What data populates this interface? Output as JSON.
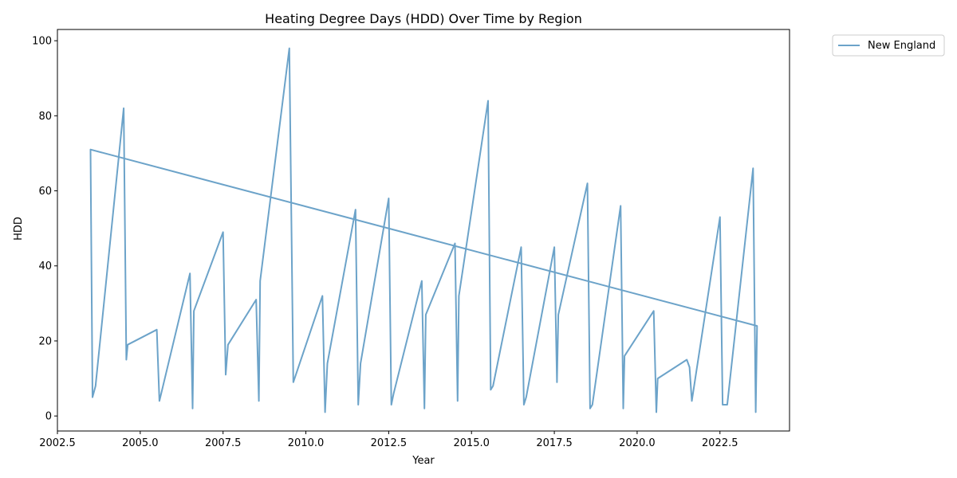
{
  "chart_data": {
    "type": "line",
    "title": "Heating Degree Days (HDD) Over Time by Region",
    "xlabel": "Year",
    "ylabel": "HDD",
    "xlim": [
      2002.5,
      2024.6
    ],
    "ylim": [
      -4,
      103
    ],
    "xticks": [
      2002.5,
      2005.0,
      2007.5,
      2010.0,
      2012.5,
      2015.0,
      2017.5,
      2020.0,
      2022.5
    ],
    "xtick_labels": [
      "2002.5",
      "2005.0",
      "2007.5",
      "2010.0",
      "2012.5",
      "2015.0",
      "2017.5",
      "2020.0",
      "2022.5"
    ],
    "yticks": [
      0,
      20,
      40,
      60,
      80,
      100
    ],
    "ytick_labels": [
      "0",
      "20",
      "40",
      "60",
      "80",
      "100"
    ],
    "grid": false,
    "legend_position": "outside-top-right",
    "series": [
      {
        "name": "New England",
        "color": "#6ca3c9",
        "points": [
          [
            2023.5,
            66
          ],
          [
            2023.58,
            1
          ],
          [
            2023.62,
            24
          ],
          [
            2003.5,
            71
          ],
          [
            2003.56,
            5
          ],
          [
            2003.65,
            8
          ],
          [
            2004.5,
            82
          ],
          [
            2004.58,
            15
          ],
          [
            2004.62,
            19
          ],
          [
            2005.5,
            23
          ],
          [
            2005.58,
            4
          ],
          [
            2006.5,
            38
          ],
          [
            2006.58,
            2
          ],
          [
            2006.62,
            28
          ],
          [
            2007.5,
            49
          ],
          [
            2007.58,
            11
          ],
          [
            2007.65,
            19
          ],
          [
            2008.5,
            31
          ],
          [
            2008.58,
            4
          ],
          [
            2008.62,
            36
          ],
          [
            2009.5,
            98
          ],
          [
            2009.62,
            9
          ],
          [
            2010.5,
            32
          ],
          [
            2010.58,
            1
          ],
          [
            2010.65,
            14
          ],
          [
            2011.5,
            55
          ],
          [
            2011.58,
            3
          ],
          [
            2011.65,
            14
          ],
          [
            2012.5,
            58
          ],
          [
            2012.58,
            3
          ],
          [
            2012.65,
            6
          ],
          [
            2013.5,
            36
          ],
          [
            2013.58,
            2
          ],
          [
            2013.62,
            27
          ],
          [
            2014.5,
            46
          ],
          [
            2014.58,
            4
          ],
          [
            2014.62,
            32
          ],
          [
            2015.5,
            84
          ],
          [
            2015.58,
            7
          ],
          [
            2015.65,
            8
          ],
          [
            2016.5,
            45
          ],
          [
            2016.58,
            3
          ],
          [
            2016.65,
            5
          ],
          [
            2017.5,
            45
          ],
          [
            2017.58,
            9
          ],
          [
            2017.62,
            27
          ],
          [
            2018.5,
            62
          ],
          [
            2018.58,
            2
          ],
          [
            2018.65,
            3
          ],
          [
            2019.5,
            56
          ],
          [
            2019.58,
            2
          ],
          [
            2019.62,
            16
          ],
          [
            2020.5,
            28
          ],
          [
            2020.58,
            1
          ],
          [
            2020.62,
            10
          ],
          [
            2021.5,
            15
          ],
          [
            2021.58,
            13
          ],
          [
            2021.65,
            4
          ],
          [
            2022.5,
            53
          ],
          [
            2022.58,
            3
          ],
          [
            2022.72,
            3
          ],
          [
            2023.5,
            66
          ],
          [
            2023.58,
            1
          ],
          [
            2023.62,
            24
          ]
        ]
      }
    ]
  }
}
